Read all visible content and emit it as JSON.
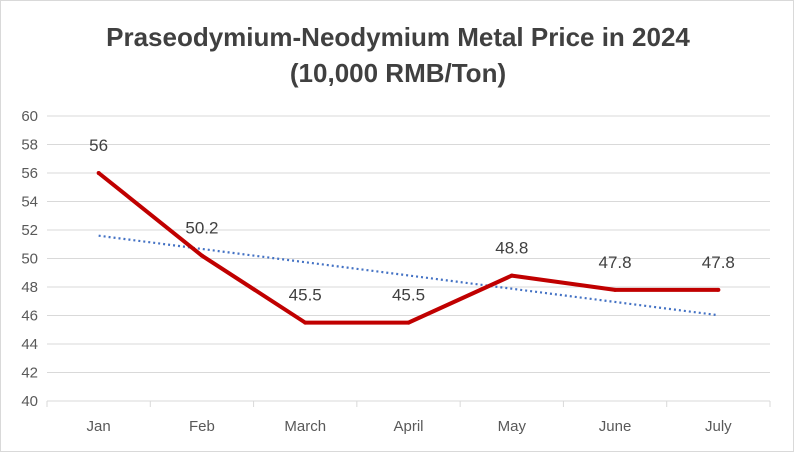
{
  "chart_data": {
    "type": "line",
    "title": "Praseodymium-Neodymium Metal Price in 2024",
    "subtitle": "(10,000 RMB/Ton)",
    "categories": [
      "Jan",
      "Feb",
      "March",
      "April",
      "May",
      "June",
      "July"
    ],
    "series": [
      {
        "values": [
          56,
          50.2,
          45.5,
          45.5,
          48.8,
          47.8,
          47.8
        ],
        "color": "#c00000",
        "data_labels": true
      },
      {
        "trendline": "linear",
        "values": [
          51.6,
          50.67,
          49.74,
          48.81,
          47.88,
          46.95,
          46.02
        ],
        "color": "#4472c4",
        "style": "dotted"
      }
    ],
    "ylim": [
      40,
      60
    ],
    "yticks": [
      40,
      42,
      44,
      46,
      48,
      50,
      52,
      54,
      56,
      58,
      60
    ],
    "grid": true,
    "legend": "none"
  }
}
